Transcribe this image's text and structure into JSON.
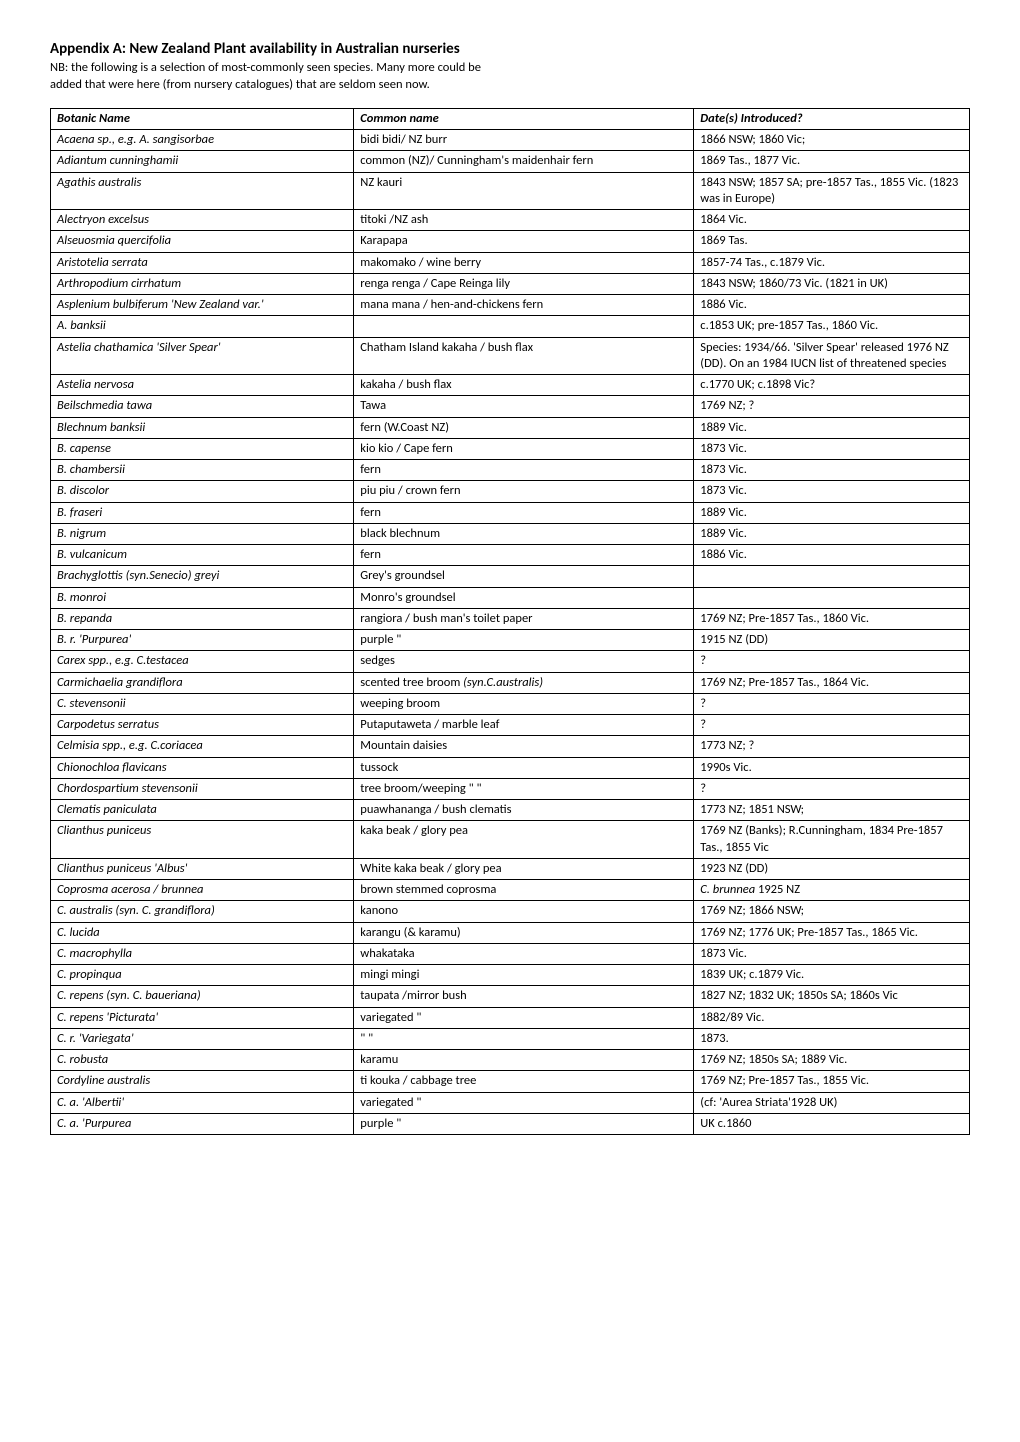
{
  "title": "Appendix A: New Zealand Plant availability in Australian nurseries",
  "subtitle_line1": "NB: the following is a selection of most-commonly seen species. Many more could be",
  "subtitle_line2": "added that were here (from nursery catalogues) that are seldom seen now.",
  "columns": [
    "Botanic Name",
    "Common name",
    "Date(s) Introduced?"
  ],
  "rows": [
    {
      "a": "Acaena sp., e.g. A. sangisorbae",
      "b": "bidi bidi/ NZ burr",
      "c": "1866 NSW; 1860 Vic;"
    },
    {
      "a": "Adiantum cunninghamii",
      "b": "common (NZ)/ Cunningham's maidenhair fern",
      "c": "1869 Tas., 1877 Vic."
    },
    {
      "a": "Agathis australis",
      "b": "NZ kauri",
      "c": "1843 NSW; 1857 SA; pre-1857 Tas., 1855 Vic. (1823 was in Europe)"
    },
    {
      "a": "Alectryon excelsus",
      "b": "titoki  /NZ ash",
      "c": "1864 Vic."
    },
    {
      "a": "Alseuosmia quercifolia",
      "b": "Karapapa",
      "c": "1869 Tas."
    },
    {
      "a": "Aristotelia serrata",
      "b": "makomako / wine berry",
      "c": "1857-74 Tas., c.1879 Vic."
    },
    {
      "a": "Arthropodium cirrhatum",
      "b": "renga renga / Cape Reinga lily",
      "c": "1843 NSW; 1860/73 Vic. (1821 in UK)"
    },
    {
      "a_html": "<i>Asplenium bulbiferum '</i>New Zealand var.<i>'</i>",
      "b": "mana mana / hen-and-chickens fern",
      "c": "1886 Vic."
    },
    {
      "a": "A. banksii",
      "b": "",
      "c": "c.1853 UK; pre-1857 Tas., 1860 Vic."
    },
    {
      "a_html": "<i>Astelia chathamica '</i>Silver Spear<i>'</i>",
      "b": "Chatham Island kakaha / bush flax",
      "c": "Species: 1934/66. 'Silver Spear' released 1976 NZ (DD). On an 1984 IUCN list of threatened species"
    },
    {
      "a": "Astelia nervosa",
      "b": "kakaha / bush flax",
      "c": "c.1770 UK; c.1898 Vic?"
    },
    {
      "a": "Beilschmedia tawa",
      "b": "Tawa",
      "c": "1769 NZ; ?"
    },
    {
      "a": "Blechnum banksii",
      "b": "fern (W.Coast  NZ)",
      "c": "1889 Vic."
    },
    {
      "a": "B. capense",
      "b": "kio kio / Cape fern",
      "c": "1873 Vic."
    },
    {
      "a": "B. chambersii",
      "b": "fern",
      "c": "1873 Vic."
    },
    {
      "a": "B. discolor",
      "b": "piu piu / crown fern",
      "c": "1873 Vic."
    },
    {
      "a": "B. fraseri",
      "b": "fern",
      "c": "1889 Vic."
    },
    {
      "a": "B. nigrum",
      "b": "black blechnum",
      "c": "1889 Vic."
    },
    {
      "a": "B. vulcanicum",
      "b": "fern",
      "c": "1886 Vic."
    },
    {
      "a": "Brachyglottis (syn.Senecio) greyi",
      "b": "Grey's groundsel",
      "c": ""
    },
    {
      "a": "B. monroi",
      "b": "Monro's groundsel",
      "c": ""
    },
    {
      "a": "B. repanda",
      "b": "rangiora / bush man's toilet paper",
      "c": "1769 NZ; Pre-1857 Tas., 1860 Vic."
    },
    {
      "a": "B. r. 'Purpurea'",
      "b": "purple \"",
      "c": "1915 NZ (DD)"
    },
    {
      "a": "Carex spp., e.g. C.testacea",
      "b": "sedges",
      "c": "?"
    },
    {
      "a": "Carmichaelia grandiflora",
      "b_html": "scented tree broom <i>(syn.C.australis)</i>",
      "c": "1769 NZ; Pre-1857 Tas., 1864 Vic."
    },
    {
      "a": "C. stevensonii",
      "b": "weeping broom",
      "c": "?"
    },
    {
      "a": "Carpodetus serratus",
      "b": "Putaputaweta / marble leaf",
      "c": "?"
    },
    {
      "a": "Celmisia spp., e.g. C.coriacea",
      "b": "Mountain daisies",
      "c": "1773 NZ; ?"
    },
    {
      "a": "Chionochloa flavicans",
      "b": "tussock",
      "c": "1990s Vic."
    },
    {
      "a": "Chordospartium stevensonii",
      "b": "tree broom/weeping \" \"",
      "c": "?"
    },
    {
      "a": "Clematis paniculata",
      "b": "puawhananga / bush clematis",
      "c": "1773 NZ; 1851 NSW;"
    },
    {
      "a": "Clianthus puniceus",
      "b": "kaka beak / glory pea",
      "c": "1769 NZ (Banks); R.Cunningham, 1834 Pre-1857 Tas., 1855 Vic"
    },
    {
      "a_html": "<i>Clianthus puniceus</i> 'Albus'",
      "b": "White kaka beak / glory pea",
      "c": "1923 NZ (DD)"
    },
    {
      "a": "Coprosma acerosa / brunnea",
      "b": "brown stemmed coprosma",
      "c_html": "<i>C. brunnea</i> 1925 NZ"
    },
    {
      "a": "C. australis (syn. C. grandiflora)",
      "b": "kanono",
      "c": "1769 NZ; 1866 NSW;"
    },
    {
      "a": "C. lucida",
      "b": "karangu (& karamu)",
      "c": "1769 NZ; 1776 UK; Pre-1857 Tas., 1865 Vic."
    },
    {
      "a": "C. macrophylla",
      "b": "whakataka",
      "c": "1873 Vic."
    },
    {
      "a": "C. propinqua",
      "b": "mingi mingi",
      "c": "1839 UK; c.1879 Vic."
    },
    {
      "a": "C. repens (syn. C. baueriana)",
      "b": "taupata  /mirror bush",
      "c": "1827 NZ; 1832 UK; 1850s SA; 1860s Vic"
    },
    {
      "a": "C. repens 'Picturata'",
      "b": "variegated \"",
      "c": "1882/89 Vic."
    },
    {
      "a": "C. r. 'Variegata'",
      "b": "\" \"",
      "c": "1873."
    },
    {
      "a": "C. robusta",
      "b": "karamu",
      "c": "1769 NZ; 1850s SA; 1889 Vic."
    },
    {
      "a": "Cordyline australis",
      "b": "ti kouka / cabbage tree",
      "c": "1769 NZ; Pre-1857 Tas., 1855 Vic."
    },
    {
      "a_html": "<i>C. a. '</i>Albertii<i>'</i>",
      "b": "variegated \"",
      "c": "(cf: 'Aurea Striata'1928 UK)"
    },
    {
      "a_html": "<i>C. a. '</i>Purpurea",
      "b": "purple \"",
      "c": "UK c.1860"
    }
  ]
}
